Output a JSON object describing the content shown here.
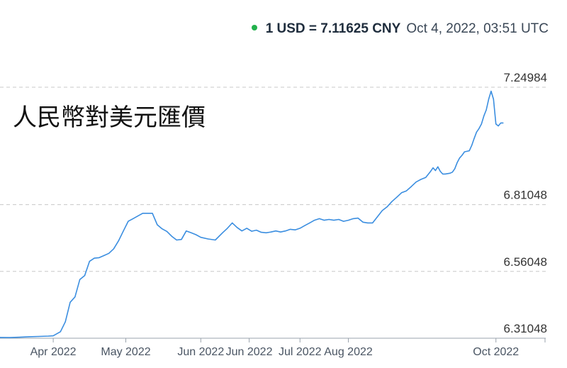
{
  "header": {
    "status_color": "#22b14c",
    "rate_text": "1 USD = 7.11625 CNY",
    "timestamp": "Oct 4, 2022, 03:51 UTC"
  },
  "chart_data": {
    "type": "line",
    "title": "人民幣對美元匯價",
    "xlabel": "",
    "ylabel": "",
    "y_ticks": [
      {
        "value": 7.24984,
        "label": "7.24984"
      },
      {
        "value": 6.81048,
        "label": "6.81048"
      },
      {
        "value": 6.56048,
        "label": "6.56048"
      },
      {
        "value": 6.31048,
        "label": "6.31048"
      }
    ],
    "x_ticks": [
      {
        "date": "2022-04-01",
        "label": "Apr 2022"
      },
      {
        "date": "2022-05-01",
        "label": "May 2022"
      },
      {
        "date": "2022-06-01",
        "label": "Jun 2022"
      },
      {
        "date": "2022-06-21",
        "label": "Jun 2022"
      },
      {
        "date": "2022-07-12",
        "label": "Jul 2022"
      },
      {
        "date": "2022-08-01",
        "label": "Aug 2022"
      },
      {
        "date": "2022-10-01",
        "label": "Oct 2022"
      }
    ],
    "ylim": [
      6.31048,
      7.24984
    ],
    "xlim": [
      "2022-03-10",
      "2022-10-21"
    ],
    "grid": true,
    "line_color": "#3b8ee0",
    "series": [
      {
        "points": [
          [
            "2022-03-10",
            6.3135
          ],
          [
            "2022-03-14",
            6.3129
          ],
          [
            "2022-03-18",
            6.3142
          ],
          [
            "2022-03-22",
            6.3161
          ],
          [
            "2022-03-26",
            6.317
          ],
          [
            "2022-03-30",
            6.3185
          ],
          [
            "2022-04-01",
            6.3195
          ],
          [
            "2022-04-04",
            6.335
          ],
          [
            "2022-04-06",
            6.372
          ],
          [
            "2022-04-08",
            6.445
          ],
          [
            "2022-04-10",
            6.465
          ],
          [
            "2022-04-12",
            6.53
          ],
          [
            "2022-04-14",
            6.545
          ],
          [
            "2022-04-16",
            6.598
          ],
          [
            "2022-04-18",
            6.61
          ],
          [
            "2022-04-20",
            6.612
          ],
          [
            "2022-04-22",
            6.62
          ],
          [
            "2022-04-24",
            6.628
          ],
          [
            "2022-04-26",
            6.645
          ],
          [
            "2022-04-28",
            6.675
          ],
          [
            "2022-04-30",
            6.712
          ],
          [
            "2022-05-02",
            6.748
          ],
          [
            "2022-05-04",
            6.758
          ],
          [
            "2022-05-06",
            6.768
          ],
          [
            "2022-05-08",
            6.778
          ],
          [
            "2022-05-10",
            6.778
          ],
          [
            "2022-05-12",
            6.778
          ],
          [
            "2022-05-14",
            6.735
          ],
          [
            "2022-05-16",
            6.72
          ],
          [
            "2022-05-18",
            6.71
          ],
          [
            "2022-05-20",
            6.692
          ],
          [
            "2022-05-22",
            6.678
          ],
          [
            "2022-05-24",
            6.68
          ],
          [
            "2022-05-26",
            6.712
          ],
          [
            "2022-05-28",
            6.705
          ],
          [
            "2022-05-30",
            6.698
          ],
          [
            "2022-06-01",
            6.688
          ],
          [
            "2022-06-04",
            6.682
          ],
          [
            "2022-06-07",
            6.678
          ],
          [
            "2022-06-10",
            6.705
          ],
          [
            "2022-06-12",
            6.722
          ],
          [
            "2022-06-14",
            6.742
          ],
          [
            "2022-06-16",
            6.725
          ],
          [
            "2022-06-18",
            6.712
          ],
          [
            "2022-06-20",
            6.722
          ],
          [
            "2022-06-22",
            6.711
          ],
          [
            "2022-06-24",
            6.715
          ],
          [
            "2022-06-26",
            6.707
          ],
          [
            "2022-06-28",
            6.705
          ],
          [
            "2022-06-30",
            6.708
          ],
          [
            "2022-07-02",
            6.712
          ],
          [
            "2022-07-04",
            6.708
          ],
          [
            "2022-07-06",
            6.712
          ],
          [
            "2022-07-08",
            6.718
          ],
          [
            "2022-07-10",
            6.716
          ],
          [
            "2022-07-12",
            6.722
          ],
          [
            "2022-07-14",
            6.732
          ],
          [
            "2022-07-16",
            6.742
          ],
          [
            "2022-07-18",
            6.752
          ],
          [
            "2022-07-20",
            6.758
          ],
          [
            "2022-07-22",
            6.752
          ],
          [
            "2022-07-24",
            6.755
          ],
          [
            "2022-07-26",
            6.752
          ],
          [
            "2022-07-28",
            6.755
          ],
          [
            "2022-07-30",
            6.748
          ],
          [
            "2022-08-01",
            6.752
          ],
          [
            "2022-08-03",
            6.758
          ],
          [
            "2022-08-05",
            6.76
          ],
          [
            "2022-08-07",
            6.745
          ],
          [
            "2022-08-09",
            6.742
          ],
          [
            "2022-08-11",
            6.742
          ],
          [
            "2022-08-13",
            6.765
          ],
          [
            "2022-08-15",
            6.788
          ],
          [
            "2022-08-17",
            6.802
          ],
          [
            "2022-08-19",
            6.822
          ],
          [
            "2022-08-21",
            6.838
          ],
          [
            "2022-08-23",
            6.855
          ],
          [
            "2022-08-25",
            6.862
          ],
          [
            "2022-08-27",
            6.878
          ],
          [
            "2022-08-29",
            6.895
          ],
          [
            "2022-08-31",
            6.905
          ],
          [
            "2022-09-02",
            6.912
          ],
          [
            "2022-09-04",
            6.935
          ],
          [
            "2022-09-05",
            6.948
          ],
          [
            "2022-09-06",
            6.938
          ],
          [
            "2022-09-07",
            6.952
          ],
          [
            "2022-09-08",
            6.935
          ],
          [
            "2022-09-09",
            6.925
          ],
          [
            "2022-09-10",
            6.925
          ],
          [
            "2022-09-12",
            6.928
          ],
          [
            "2022-09-13",
            6.932
          ],
          [
            "2022-09-14",
            6.945
          ],
          [
            "2022-09-15",
            6.968
          ],
          [
            "2022-09-16",
            6.985
          ],
          [
            "2022-09-17",
            6.995
          ],
          [
            "2022-09-18",
            7.008
          ],
          [
            "2022-09-20",
            7.012
          ],
          [
            "2022-09-21",
            7.032
          ],
          [
            "2022-09-22",
            7.058
          ],
          [
            "2022-09-23",
            7.082
          ],
          [
            "2022-09-24",
            7.095
          ],
          [
            "2022-09-25",
            7.112
          ],
          [
            "2022-09-26",
            7.142
          ],
          [
            "2022-09-27",
            7.165
          ],
          [
            "2022-09-28",
            7.205
          ],
          [
            "2022-09-29",
            7.235
          ],
          [
            "2022-09-30",
            7.205
          ],
          [
            "2022-10-01",
            7.112
          ],
          [
            "2022-10-02",
            7.105
          ],
          [
            "2022-10-03",
            7.116
          ],
          [
            "2022-10-04",
            7.116
          ]
        ]
      }
    ]
  }
}
